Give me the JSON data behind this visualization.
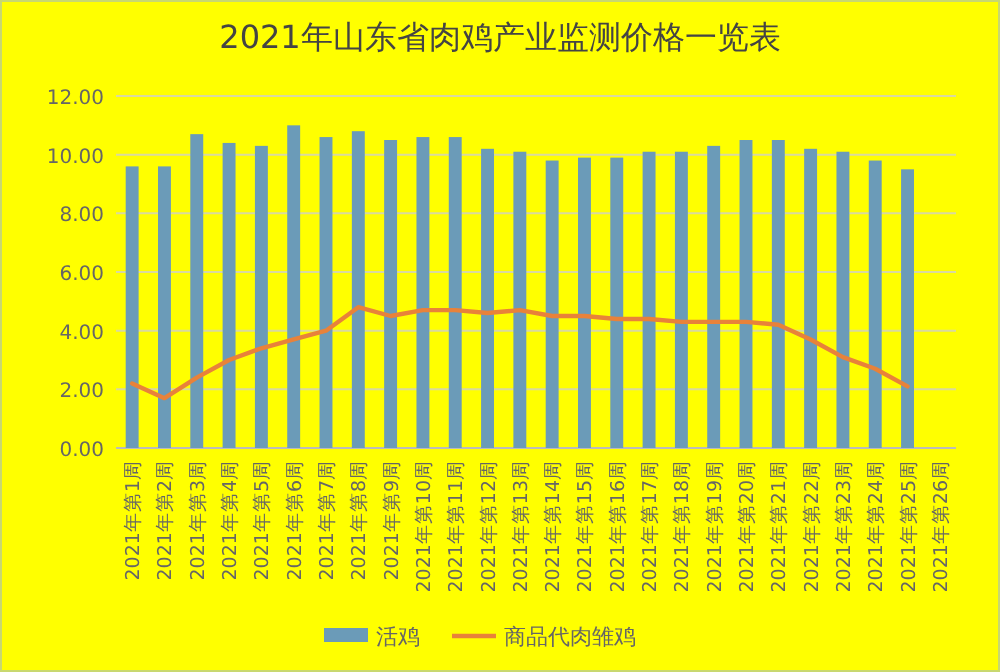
{
  "chart_data": {
    "type": "bar",
    "title": "2021年山东省肉鸡产业监测价格一览表",
    "categories": [
      "2021年第1周",
      "2021年第2周",
      "2021年第3周",
      "2021年第4周",
      "2021年第5周",
      "2021年第6周",
      "2021年第7周",
      "2021年第8周",
      "2021年第9周",
      "2021年第10周",
      "2021年第11周",
      "2021年第12周",
      "2021年第13周",
      "2021年第14周",
      "2021年第15周",
      "2021年第16周",
      "2021年第17周",
      "2021年第18周",
      "2021年第19周",
      "2021年第20周",
      "2021年第21周",
      "2021年第22周",
      "2021年第23周",
      "2021年第24周",
      "2021年第25周",
      "2021年第26周"
    ],
    "series": [
      {
        "name": "活鸡",
        "color": "#6b9bb8",
        "values": [
          9.6,
          9.6,
          10.7,
          10.4,
          10.3,
          11.0,
          10.6,
          10.8,
          10.5,
          10.6,
          10.6,
          10.2,
          10.1,
          9.8,
          9.9,
          9.9,
          10.1,
          10.1,
          10.3,
          10.5,
          10.5,
          10.2,
          10.1,
          9.8,
          9.5,
          null
        ]
      },
      {
        "name": "商品代肉雏鸡",
        "type": "line",
        "color": "#e8823a",
        "values": [
          2.2,
          1.7,
          2.4,
          3.0,
          3.4,
          3.7,
          4.0,
          4.8,
          4.5,
          4.7,
          4.7,
          4.6,
          4.7,
          4.5,
          4.5,
          4.4,
          4.4,
          4.3,
          4.3,
          4.3,
          4.2,
          3.7,
          3.1,
          2.7,
          2.1,
          null
        ]
      }
    ],
    "ylim": [
      0,
      12
    ],
    "yticks": [
      {
        "value": 0,
        "label": "0.00"
      },
      {
        "value": 2,
        "label": "2.00"
      },
      {
        "value": 4,
        "label": "4.00"
      },
      {
        "value": 6,
        "label": "6.00"
      },
      {
        "value": 8,
        "label": "8.00"
      },
      {
        "value": 10,
        "label": "10.00"
      },
      {
        "value": 12,
        "label": "12.00"
      }
    ],
    "grid": "y",
    "legend": "bottom",
    "marker": "none"
  }
}
